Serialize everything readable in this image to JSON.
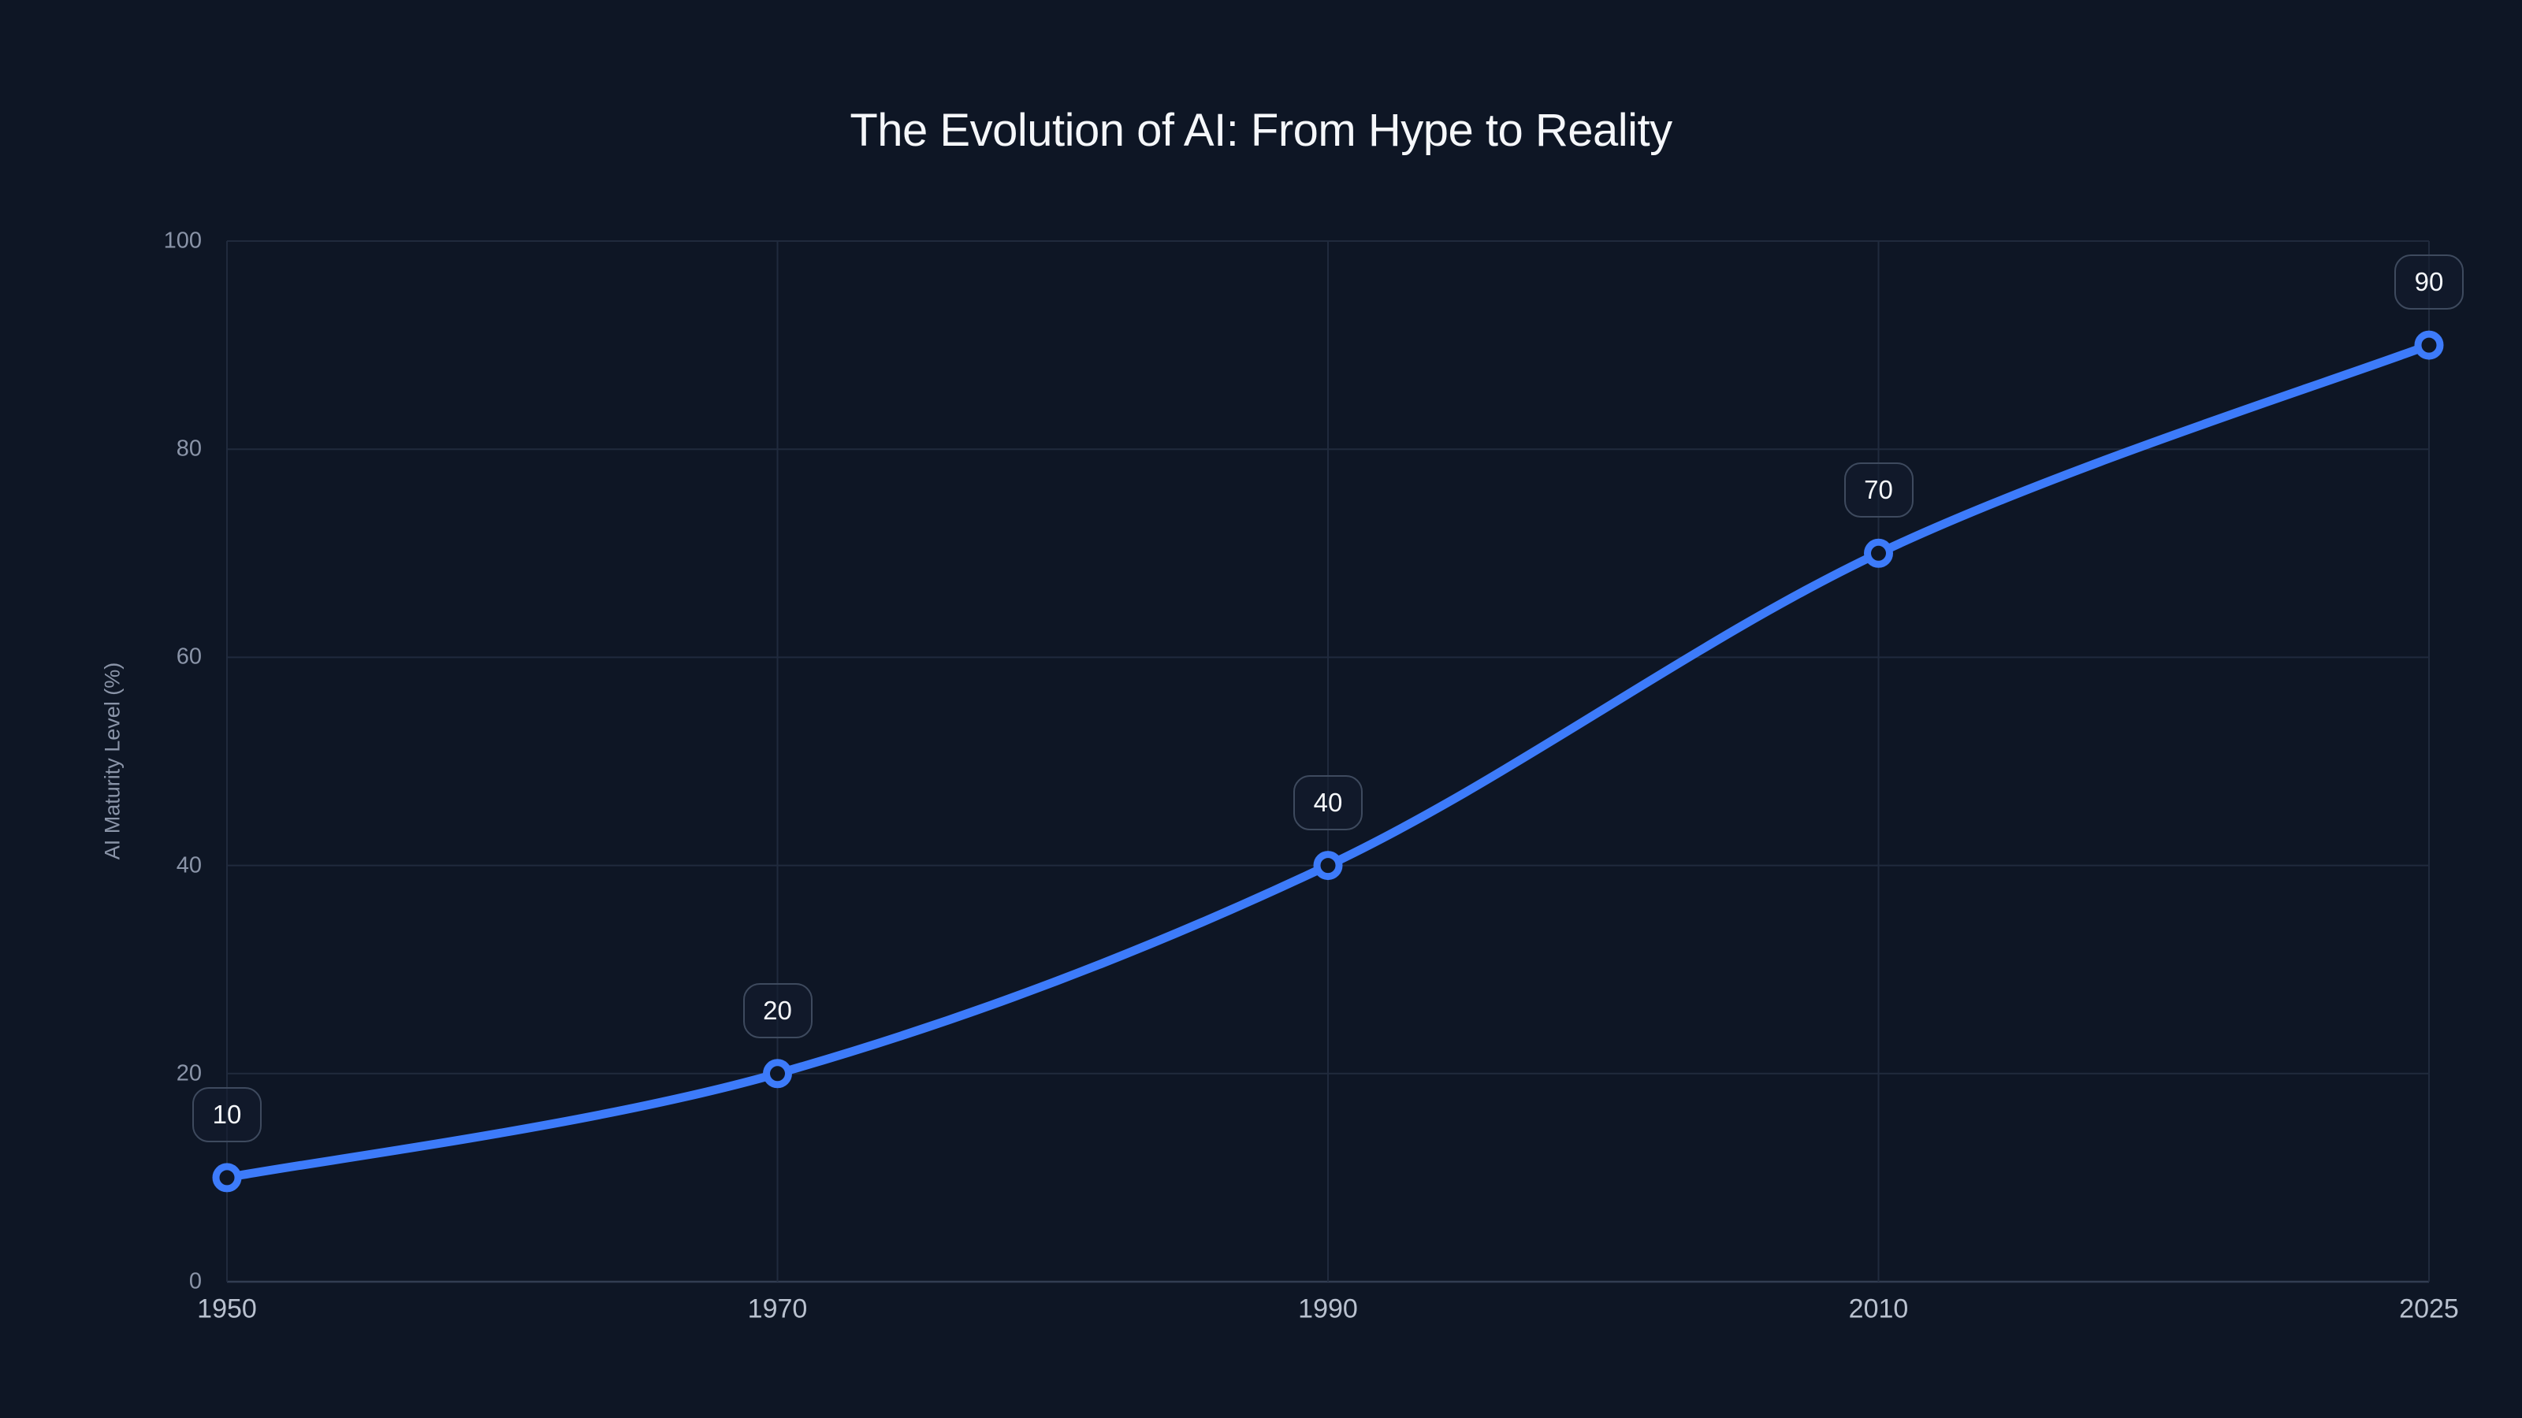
{
  "chart_data": {
    "type": "line",
    "title": "The Evolution of AI: From Hype to Reality",
    "xlabel": "",
    "ylabel": "AI Maturity Level (%)",
    "categories": [
      "1950",
      "1970",
      "1990",
      "2010",
      "2025"
    ],
    "series": [
      {
        "name": "AI Maturity Level",
        "values": [
          10,
          20,
          40,
          70,
          90
        ]
      }
    ],
    "point_labels": [
      "10",
      "20",
      "40",
      "70",
      "90"
    ],
    "ylim": [
      0,
      100
    ],
    "yticks": [
      0,
      20,
      40,
      60,
      80,
      100
    ],
    "grid": true,
    "legend_position": "none",
    "x_spacing": "equal",
    "curve": "smooth",
    "colors": {
      "background": "#0e1625",
      "line": "#3d7bfa",
      "point_fill": "#0e1625",
      "grid": "#202a3d",
      "axis_line": "#323d52",
      "title": "#f5f7fa",
      "tick_y": "#8a94a8",
      "tick_x": "#b9c1cf",
      "badge_bg": "rgba(20,28,46,0.6)",
      "badge_border": "#3e4a5e",
      "badge_text": "#f5f7fa"
    }
  }
}
